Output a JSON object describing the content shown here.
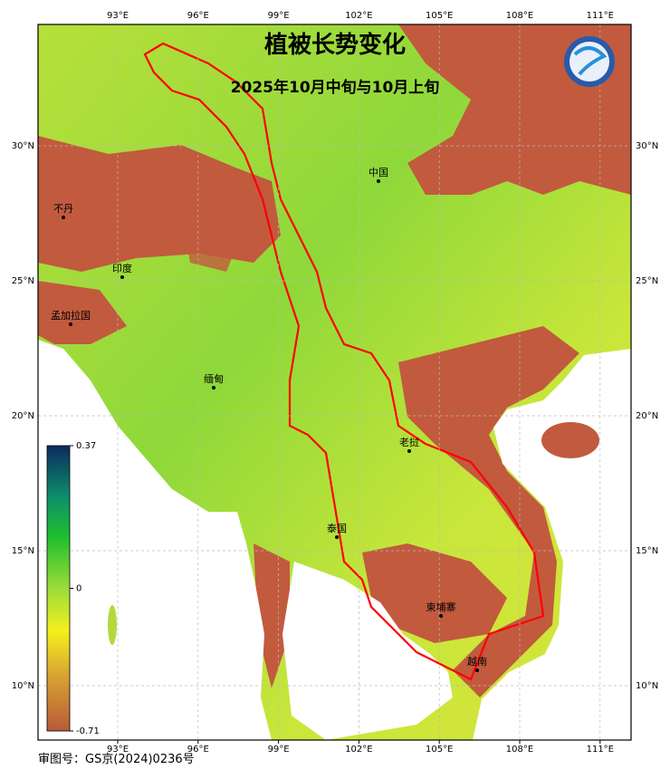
{
  "title": "植被长势变化",
  "subtitle": "2025年10月中旬与10月上旬",
  "map": {
    "lon_ticks": [
      {
        "value": 93,
        "label": "93°E"
      },
      {
        "value": 96,
        "label": "96°E"
      },
      {
        "value": 99,
        "label": "99°E"
      },
      {
        "value": 102,
        "label": "102°E"
      },
      {
        "value": 105,
        "label": "105°E"
      },
      {
        "value": 108,
        "label": "108°E"
      },
      {
        "value": 111,
        "label": "111°E"
      }
    ],
    "lat_ticks": [
      {
        "value": 30,
        "label": "30°N"
      },
      {
        "value": 25,
        "label": "25°N"
      },
      {
        "value": 20,
        "label": "20°N"
      },
      {
        "value": 15,
        "label": "15°N"
      },
      {
        "value": 10,
        "label": "10°N"
      }
    ],
    "places": [
      "中国",
      "不丹",
      "印度",
      "孟加拉国",
      "缅甸",
      "老挝",
      "泰国",
      "柬埔寨",
      "越南"
    ]
  },
  "colorbar": {
    "ticks": [
      0.37,
      0,
      -0.71
    ]
  },
  "footer": "审图号：GS京(2024)0236号"
}
